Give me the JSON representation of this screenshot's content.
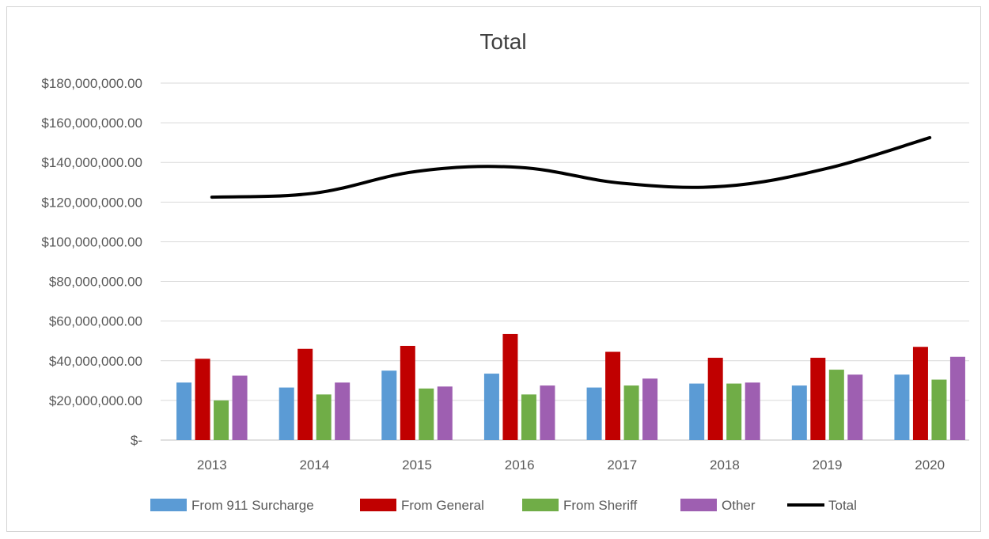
{
  "chart_data": {
    "type": "bar",
    "title": "Total",
    "xlabel": "",
    "ylabel": "",
    "ylim": [
      0,
      180000000
    ],
    "y_ticks": [
      0,
      20000000,
      40000000,
      60000000,
      80000000,
      100000000,
      120000000,
      140000000,
      160000000,
      180000000
    ],
    "y_tick_labels": [
      "$-",
      "$20,000,000.00",
      "$40,000,000.00",
      "$60,000,000.00",
      "$80,000,000.00",
      "$100,000,000.00",
      "$120,000,000.00",
      "$140,000,000.00",
      "$160,000,000.00",
      "$180,000,000.00"
    ],
    "categories": [
      "2013",
      "2014",
      "2015",
      "2016",
      "2017",
      "2018",
      "2019",
      "2020"
    ],
    "grid": true,
    "legend_position": "bottom",
    "series": [
      {
        "name": "From 911 Surcharge",
        "type": "bar",
        "color": "#5b9bd5",
        "values": [
          29000000,
          26500000,
          35000000,
          33500000,
          26500000,
          28500000,
          27500000,
          33000000
        ]
      },
      {
        "name": "From General",
        "type": "bar",
        "color": "#c00000",
        "values": [
          41000000,
          46000000,
          47500000,
          53500000,
          44500000,
          41500000,
          41500000,
          47000000
        ]
      },
      {
        "name": "From Sheriff",
        "type": "bar",
        "color": "#70ad47",
        "values": [
          20000000,
          23000000,
          26000000,
          23000000,
          27500000,
          28500000,
          35500000,
          30500000
        ]
      },
      {
        "name": "Other",
        "type": "bar",
        "color": "#9e5fb1",
        "values": [
          32500000,
          29000000,
          27000000,
          27500000,
          31000000,
          29000000,
          33000000,
          42000000
        ]
      },
      {
        "name": "Total",
        "type": "line",
        "color": "#000000",
        "values": [
          122500000,
          124500000,
          135500000,
          137500000,
          129500000,
          128000000,
          137000000,
          152500000
        ]
      }
    ]
  }
}
